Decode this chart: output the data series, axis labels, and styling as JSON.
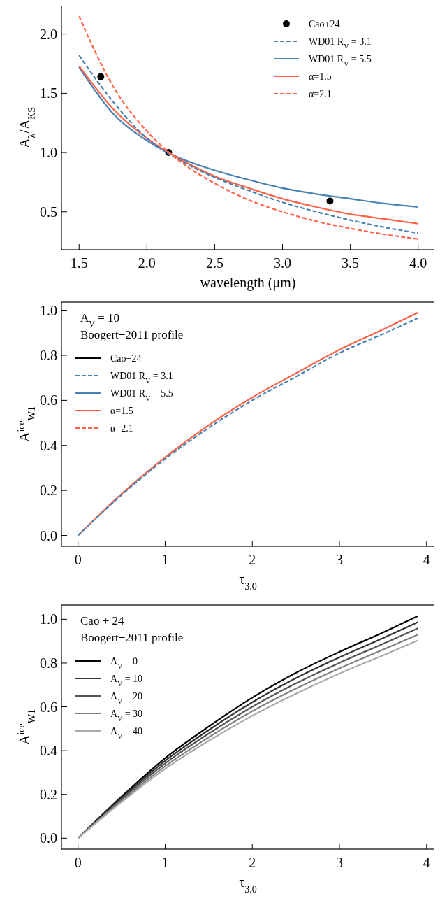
{
  "chart_data": [
    {
      "type": "line",
      "xlabel": "wavelength (μm)",
      "ylabel": "A$_{λ}$/A$_{KS}$",
      "xlim": [
        1.37,
        4.12
      ],
      "ylim": [
        0.18,
        2.24
      ],
      "xticks": [
        {
          "value": 1.5,
          "label": "1.5"
        },
        {
          "value": 2,
          "label": "2.0"
        },
        {
          "value": 2.5,
          "label": "2.5"
        },
        {
          "value": 3,
          "label": "3.0"
        },
        {
          "value": 3.5,
          "label": "3.5"
        },
        {
          "value": 4,
          "label": "4.0"
        }
      ],
      "yticks": [
        {
          "value": 0.5,
          "label": "0.5"
        },
        {
          "value": 1,
          "label": "1.0"
        },
        {
          "value": 1.5,
          "label": "1.5"
        },
        {
          "value": 2,
          "label": "2.0"
        }
      ],
      "legend": "top right",
      "x": [
        1.5,
        1.75,
        2.0,
        2.25,
        2.5,
        2.75,
        3.0,
        3.25,
        3.5,
        3.75,
        4.0
      ],
      "series": [
        {
          "name": "Cao+24",
          "type": "scatter",
          "marker": "circle",
          "color": "#000000",
          "x": [
            1.66,
            2.16,
            3.35
          ],
          "values": [
            1.64,
            1.0,
            0.59
          ]
        },
        {
          "name": "WD01 R$_{V}$ = 3.1",
          "color": "#4682b4",
          "line_style": "dashed",
          "values": [
            1.82,
            1.43,
            1.12,
            0.93,
            0.79,
            0.68,
            0.58,
            0.5,
            0.43,
            0.37,
            0.32
          ]
        },
        {
          "name": "WD01 R$_{V}$ = 5.5",
          "color": "#4682b4",
          "line_style": "solid",
          "values": [
            1.72,
            1.33,
            1.1,
            0.95,
            0.85,
            0.77,
            0.7,
            0.65,
            0.61,
            0.57,
            0.54
          ]
        },
        {
          "name": "α=1.5",
          "color": "#ff6347",
          "line_style": "solid",
          "values": [
            1.73,
            1.37,
            1.12,
            0.94,
            0.8,
            0.7,
            0.61,
            0.54,
            0.48,
            0.44,
            0.4
          ]
        },
        {
          "name": "α=2.1",
          "color": "#ff6347",
          "line_style": "dashed",
          "values": [
            2.15,
            1.56,
            1.18,
            0.92,
            0.74,
            0.6,
            0.5,
            0.42,
            0.36,
            0.31,
            0.27
          ]
        }
      ]
    },
    {
      "type": "line",
      "xlabel": "τ$_{3.0}$",
      "ylabel": "A$^{ice}$$_{W1}$",
      "annotations": [
        "A$_{V}$ = 10",
        "Boogert+2011 profile"
      ],
      "xlim": [
        -0.19,
        4.09
      ],
      "ylim": [
        -0.048,
        1.036
      ],
      "xticks": [
        0,
        1,
        2,
        3,
        4
      ],
      "yticks": [
        {
          "value": 0,
          "label": "0.0"
        },
        {
          "value": 0.2,
          "label": "0.2"
        },
        {
          "value": 0.4,
          "label": "0.4"
        },
        {
          "value": 0.6,
          "label": "0.6"
        },
        {
          "value": 0.8,
          "label": "0.8"
        },
        {
          "value": 1,
          "label": "1.0"
        }
      ],
      "legend": "top left",
      "x": [
        0,
        0.5,
        1,
        1.5,
        2,
        2.5,
        3,
        3.5,
        3.9
      ],
      "series": [
        {
          "name": "Cao+24",
          "color": "#000000",
          "line_style": "solid",
          "values": [
            null,
            null,
            null,
            null,
            null,
            null,
            null,
            null,
            null
          ]
        },
        {
          "name": "WD01 R$_{V}$ = 3.1",
          "color": "#4682b4",
          "line_style": "dashed",
          "values": [
            0,
            0.18,
            0.34,
            0.478,
            0.6,
            0.705,
            0.81,
            0.895,
            0.965
          ]
        },
        {
          "name": "WD01 R$_{V}$ = 5.5",
          "color": "#4682b4",
          "line_style": "solid",
          "values": [
            null,
            null,
            null,
            null,
            null,
            null,
            null,
            null,
            null
          ]
        },
        {
          "name": "α=1.5",
          "color": "#ff6347",
          "line_style": "solid",
          "values": [
            0,
            0.185,
            0.347,
            0.49,
            0.613,
            0.72,
            0.825,
            0.915,
            0.99
          ]
        },
        {
          "name": "α=2.1",
          "color": "#ff6347",
          "line_style": "dashed",
          "values": [
            null,
            null,
            null,
            null,
            null,
            null,
            null,
            null,
            null
          ]
        }
      ]
    },
    {
      "type": "line",
      "xlabel": "τ$_{3.0}$",
      "ylabel": "A$^{ice}$$_{W1}$",
      "annotations": [
        "Cao + 24",
        "Boogert+2011 profile"
      ],
      "xlim": [
        -0.19,
        4.09
      ],
      "ylim": [
        -0.05,
        1.065
      ],
      "xticks": [
        0,
        1,
        2,
        3,
        4
      ],
      "yticks": [
        {
          "value": 0,
          "label": "0.0"
        },
        {
          "value": 0.2,
          "label": "0.2"
        },
        {
          "value": 0.4,
          "label": "0.4"
        },
        {
          "value": 0.6,
          "label": "0.6"
        },
        {
          "value": 0.8,
          "label": "0.8"
        },
        {
          "value": 1,
          "label": "1.0"
        }
      ],
      "legend": "top left",
      "x": [
        0,
        0.5,
        1,
        1.5,
        2,
        2.5,
        3,
        3.5,
        3.9
      ],
      "series": [
        {
          "name": "A$_{V}$ = 0",
          "color": "#000000",
          "line_style": "solid",
          "values": [
            0,
            0.19,
            0.366,
            0.51,
            0.642,
            0.755,
            0.851,
            0.94,
            1.015
          ]
        },
        {
          "name": "A$_{V}$ = 10",
          "color": "#333333",
          "line_style": "solid",
          "values": [
            0,
            0.184,
            0.354,
            0.494,
            0.621,
            0.731,
            0.826,
            0.914,
            0.987
          ]
        },
        {
          "name": "A$_{V}$ = 20",
          "color": "#555555",
          "line_style": "solid",
          "values": [
            0,
            0.178,
            0.342,
            0.478,
            0.6,
            0.707,
            0.801,
            0.888,
            0.959
          ]
        },
        {
          "name": "A$_{V}$ = 30",
          "color": "#808080",
          "line_style": "solid",
          "values": [
            0,
            0.171,
            0.329,
            0.461,
            0.58,
            0.683,
            0.776,
            0.861,
            0.93
          ]
        },
        {
          "name": "A$_{V}$ = 40",
          "color": "#aaaaaa",
          "line_style": "solid",
          "values": [
            0,
            0.165,
            0.317,
            0.445,
            0.559,
            0.66,
            0.752,
            0.835,
            0.904
          ]
        }
      ]
    }
  ]
}
